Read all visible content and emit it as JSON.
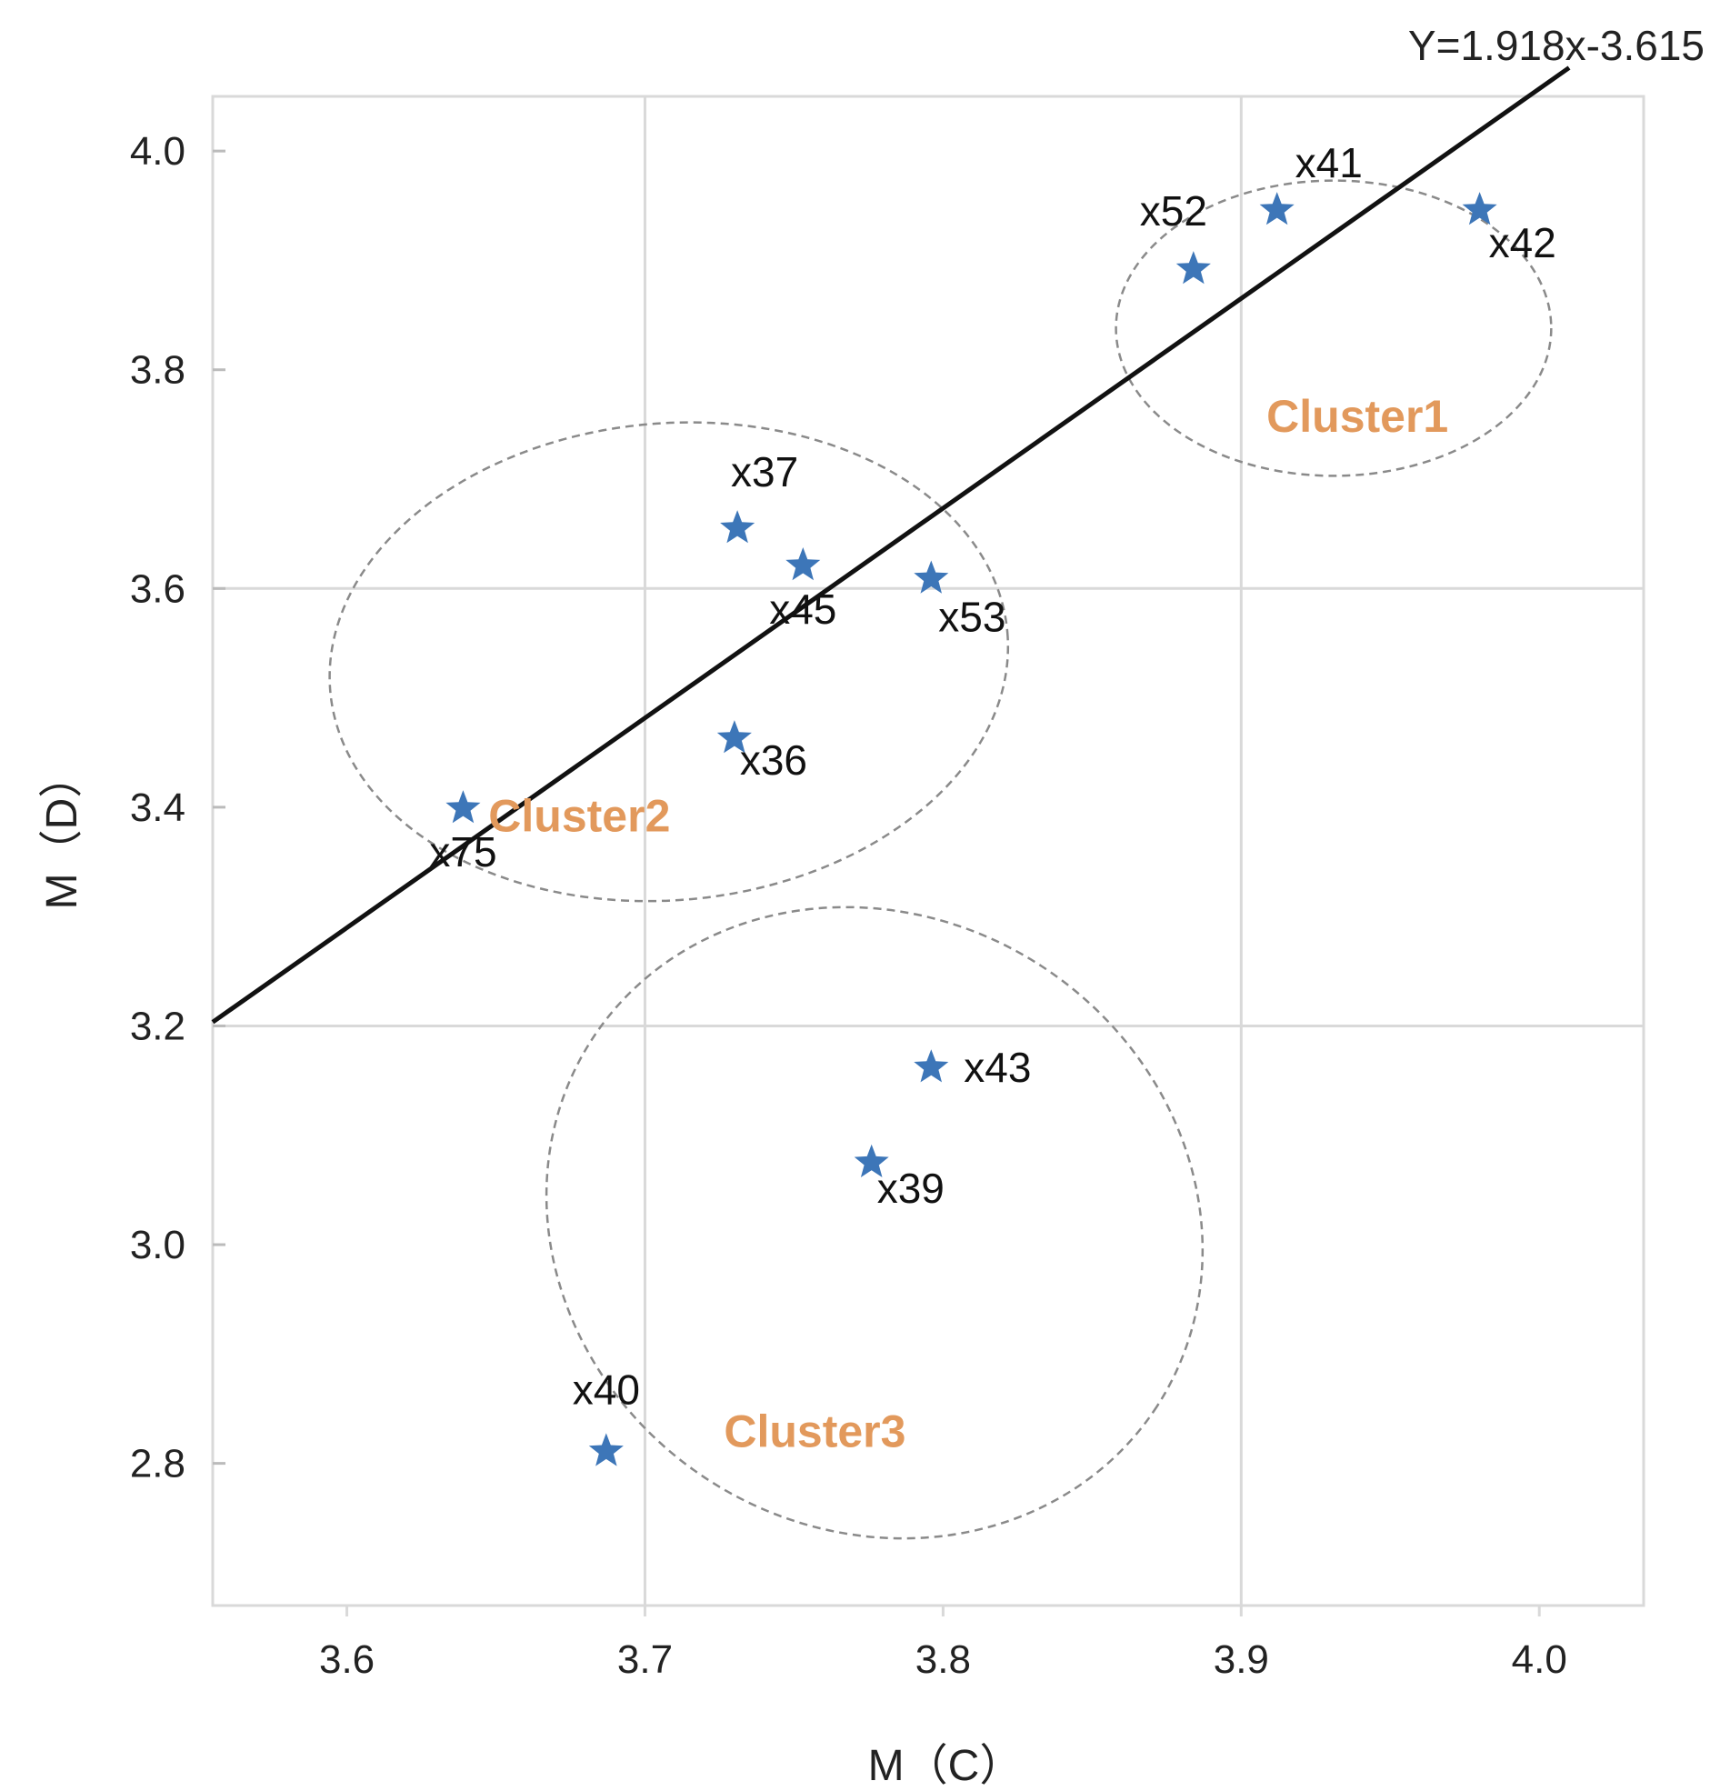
{
  "chart_data": {
    "type": "scatter",
    "title": "",
    "xlabel": "M（C）",
    "ylabel": "M（D）",
    "xlim": [
      3.555,
      4.035
    ],
    "ylim": [
      2.67,
      4.05
    ],
    "x_ticks": [
      {
        "value": 3.6,
        "label": "3.6"
      },
      {
        "value": 3.7,
        "label": "3.7"
      },
      {
        "value": 3.8,
        "label": "3.8"
      },
      {
        "value": 3.9,
        "label": "3.9"
      },
      {
        "value": 4.0,
        "label": "4.0"
      }
    ],
    "y_ticks": [
      {
        "value": 2.8,
        "label": "2.8"
      },
      {
        "value": 3.0,
        "label": "3.0"
      },
      {
        "value": 3.2,
        "label": "3.2"
      },
      {
        "value": 3.4,
        "label": "3.4"
      },
      {
        "value": 3.6,
        "label": "3.6"
      },
      {
        "value": 3.8,
        "label": "3.8"
      },
      {
        "value": 4.0,
        "label": "4.0"
      }
    ],
    "grid_x": [
      3.7,
      3.9
    ],
    "grid_y": [
      3.2,
      3.6
    ],
    "grid": true,
    "points": [
      {
        "label": "x52",
        "x": 3.884,
        "y": 3.892,
        "cluster": "Cluster1"
      },
      {
        "label": "x41",
        "x": 3.912,
        "y": 3.946,
        "cluster": "Cluster1"
      },
      {
        "label": "x42",
        "x": 3.98,
        "y": 3.946,
        "cluster": "Cluster1"
      },
      {
        "label": "x37",
        "x": 3.731,
        "y": 3.655,
        "cluster": "Cluster2"
      },
      {
        "label": "x45",
        "x": 3.753,
        "y": 3.621,
        "cluster": "Cluster2"
      },
      {
        "label": "x53",
        "x": 3.796,
        "y": 3.609,
        "cluster": "Cluster2"
      },
      {
        "label": "x36",
        "x": 3.73,
        "y": 3.463,
        "cluster": "Cluster2"
      },
      {
        "label": "x75",
        "x": 3.639,
        "y": 3.399,
        "cluster": "Cluster2"
      },
      {
        "label": "x43",
        "x": 3.796,
        "y": 3.162,
        "cluster": "Cluster3"
      },
      {
        "label": "x39",
        "x": 3.776,
        "y": 3.075,
        "cluster": "Cluster3"
      },
      {
        "label": "x40",
        "x": 3.687,
        "y": 2.811,
        "cluster": "Cluster3"
      }
    ],
    "regression": {
      "label": "Y=1.918x-3.615",
      "slope": 1.918,
      "intercept": -3.615,
      "x_range": [
        3.555,
        4.01
      ]
    },
    "clusters": [
      {
        "name": "Cluster1",
        "cx": 3.931,
        "cy": 3.838,
        "rx": 0.073,
        "ry": 0.135,
        "rotation": 0
      },
      {
        "name": "Cluster2",
        "cx": 3.708,
        "cy": 3.533,
        "rx": 0.114,
        "ry": 0.218,
        "rotation": -5
      },
      {
        "name": "Cluster3",
        "cx": 3.777,
        "cy": 3.02,
        "rx": 0.113,
        "ry": 0.28,
        "rotation": 33
      }
    ],
    "colors": {
      "marker": "#3d76b8",
      "cluster_label": "#e2995c",
      "grid": "#d9d9d9",
      "regression": "#111111",
      "ellipse": "#8a8a8a"
    }
  }
}
